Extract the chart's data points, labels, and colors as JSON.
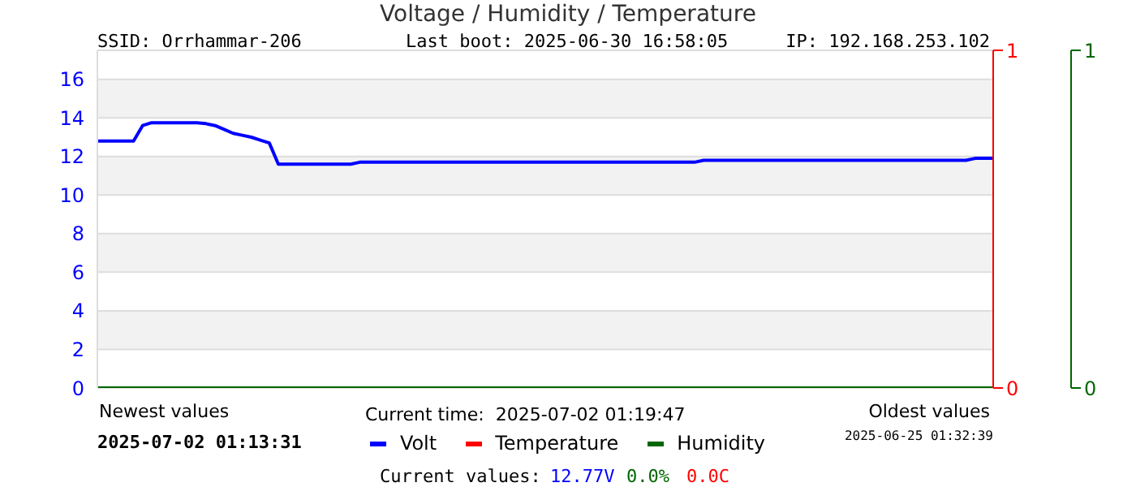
{
  "chart_data": {
    "type": "line",
    "title": "Voltage / Humidity / Temperature",
    "categories": [
      null,
      null,
      null,
      null,
      null,
      null,
      null,
      null,
      null,
      null,
      null,
      null,
      null,
      null,
      null,
      null,
      null,
      null,
      null,
      null,
      null,
      null,
      null,
      null,
      null,
      null,
      null,
      null,
      null,
      null,
      null,
      null,
      null,
      null,
      null,
      null,
      null,
      null,
      null,
      null,
      null,
      null,
      null,
      null,
      null,
      null,
      null,
      null,
      null,
      null,
      null,
      null,
      null,
      null,
      null,
      null,
      null,
      null,
      null,
      null,
      null,
      null,
      null,
      null,
      null,
      null,
      null,
      null,
      null,
      null,
      null,
      null,
      null,
      null,
      null,
      null,
      null,
      null,
      null,
      null,
      null,
      null,
      null,
      null,
      null,
      null,
      null,
      null,
      null,
      null,
      null,
      null,
      null,
      null,
      null,
      null,
      null,
      null,
      null,
      null
    ],
    "series": [
      {
        "name": "Volt",
        "color": "#0000ff",
        "values": [
          12.8,
          12.8,
          12.8,
          12.8,
          12.8,
          13.6,
          13.75,
          13.75,
          13.75,
          13.75,
          13.75,
          13.75,
          13.7,
          13.6,
          13.4,
          13.2,
          13.1,
          13.0,
          12.85,
          12.7,
          11.6,
          11.6,
          11.6,
          11.6,
          11.6,
          11.6,
          11.6,
          11.6,
          11.6,
          11.7,
          11.7,
          11.7,
          11.7,
          11.7,
          11.7,
          11.7,
          11.7,
          11.7,
          11.7,
          11.7,
          11.7,
          11.7,
          11.7,
          11.7,
          11.7,
          11.7,
          11.7,
          11.7,
          11.7,
          11.7,
          11.7,
          11.7,
          11.7,
          11.7,
          11.7,
          11.7,
          11.7,
          11.7,
          11.7,
          11.7,
          11.7,
          11.7,
          11.7,
          11.7,
          11.7,
          11.7,
          11.7,
          11.8,
          11.8,
          11.8,
          11.8,
          11.8,
          11.8,
          11.8,
          11.8,
          11.8,
          11.8,
          11.8,
          11.8,
          11.8,
          11.8,
          11.8,
          11.8,
          11.8,
          11.8,
          11.8,
          11.8,
          11.8,
          11.8,
          11.8,
          11.8,
          11.8,
          11.8,
          11.8,
          11.8,
          11.8,
          11.8,
          11.9,
          11.9,
          11.9
        ]
      },
      {
        "name": "Temperature",
        "color": "#ff0000",
        "axis": "y2",
        "values": [
          null,
          null,
          null,
          null,
          null,
          null,
          null,
          null,
          null,
          null,
          null,
          null,
          null,
          null,
          null,
          null,
          null,
          null,
          null,
          null,
          null,
          null,
          null,
          null,
          null,
          null,
          null,
          null,
          null,
          null,
          null,
          null,
          null,
          null,
          null,
          null,
          null,
          null,
          null,
          null,
          null,
          null,
          null,
          null,
          null,
          null,
          null,
          null,
          null,
          null,
          null,
          null,
          null,
          null,
          null,
          null,
          null,
          null,
          null,
          null,
          null,
          null,
          null,
          null,
          null,
          null,
          null,
          null,
          null,
          null,
          null,
          null,
          null,
          null,
          null,
          null,
          null,
          null,
          null,
          null,
          null,
          null,
          null,
          null,
          null,
          null,
          null,
          null,
          null,
          null,
          null,
          null,
          null,
          null,
          null,
          null,
          null,
          null,
          null,
          null
        ]
      },
      {
        "name": "Humidity",
        "color": "#006600",
        "axis": "y3",
        "values": [
          0,
          0,
          0,
          0,
          0,
          0,
          0,
          0,
          0,
          0,
          0,
          0,
          0,
          0,
          0,
          0,
          0,
          0,
          0,
          0,
          0,
          0,
          0,
          0,
          0,
          0,
          0,
          0,
          0,
          0,
          0,
          0,
          0,
          0,
          0,
          0,
          0,
          0,
          0,
          0,
          0,
          0,
          0,
          0,
          0,
          0,
          0,
          0,
          0,
          0,
          0,
          0,
          0,
          0,
          0,
          0,
          0,
          0,
          0,
          0,
          0,
          0,
          0,
          0,
          0,
          0,
          0,
          0,
          0,
          0,
          0,
          0,
          0,
          0,
          0,
          0,
          0,
          0,
          0,
          0,
          0,
          0,
          0,
          0,
          0,
          0,
          0,
          0,
          0,
          0,
          0,
          0,
          0,
          0,
          0,
          0,
          0,
          0,
          0,
          0
        ]
      }
    ],
    "ylim": [
      0,
      17.5
    ],
    "yticks": [
      0,
      2,
      4,
      6,
      8,
      10,
      12,
      14,
      16
    ],
    "y2lim": [
      0,
      1
    ],
    "y2ticks": [
      0,
      1
    ],
    "y3lim": [
      0,
      1
    ],
    "y3ticks": [
      0,
      1
    ],
    "grid": "y",
    "legend": "bottom",
    "marker": "none",
    "line_style": "solid",
    "annotations": [
      "SSID: Orrhammar-206",
      "Last boot: 2025-06-30 16:58:05",
      "IP: 192.168.253.102",
      "Newest values",
      "Current time:  2025-07-02 01:19:47",
      "Oldest values",
      "2025-07-02 01:13:31",
      "2025-06-25 01:32:39",
      "Current values:",
      "12.77V",
      "0.0%",
      "0.0C"
    ]
  }
}
